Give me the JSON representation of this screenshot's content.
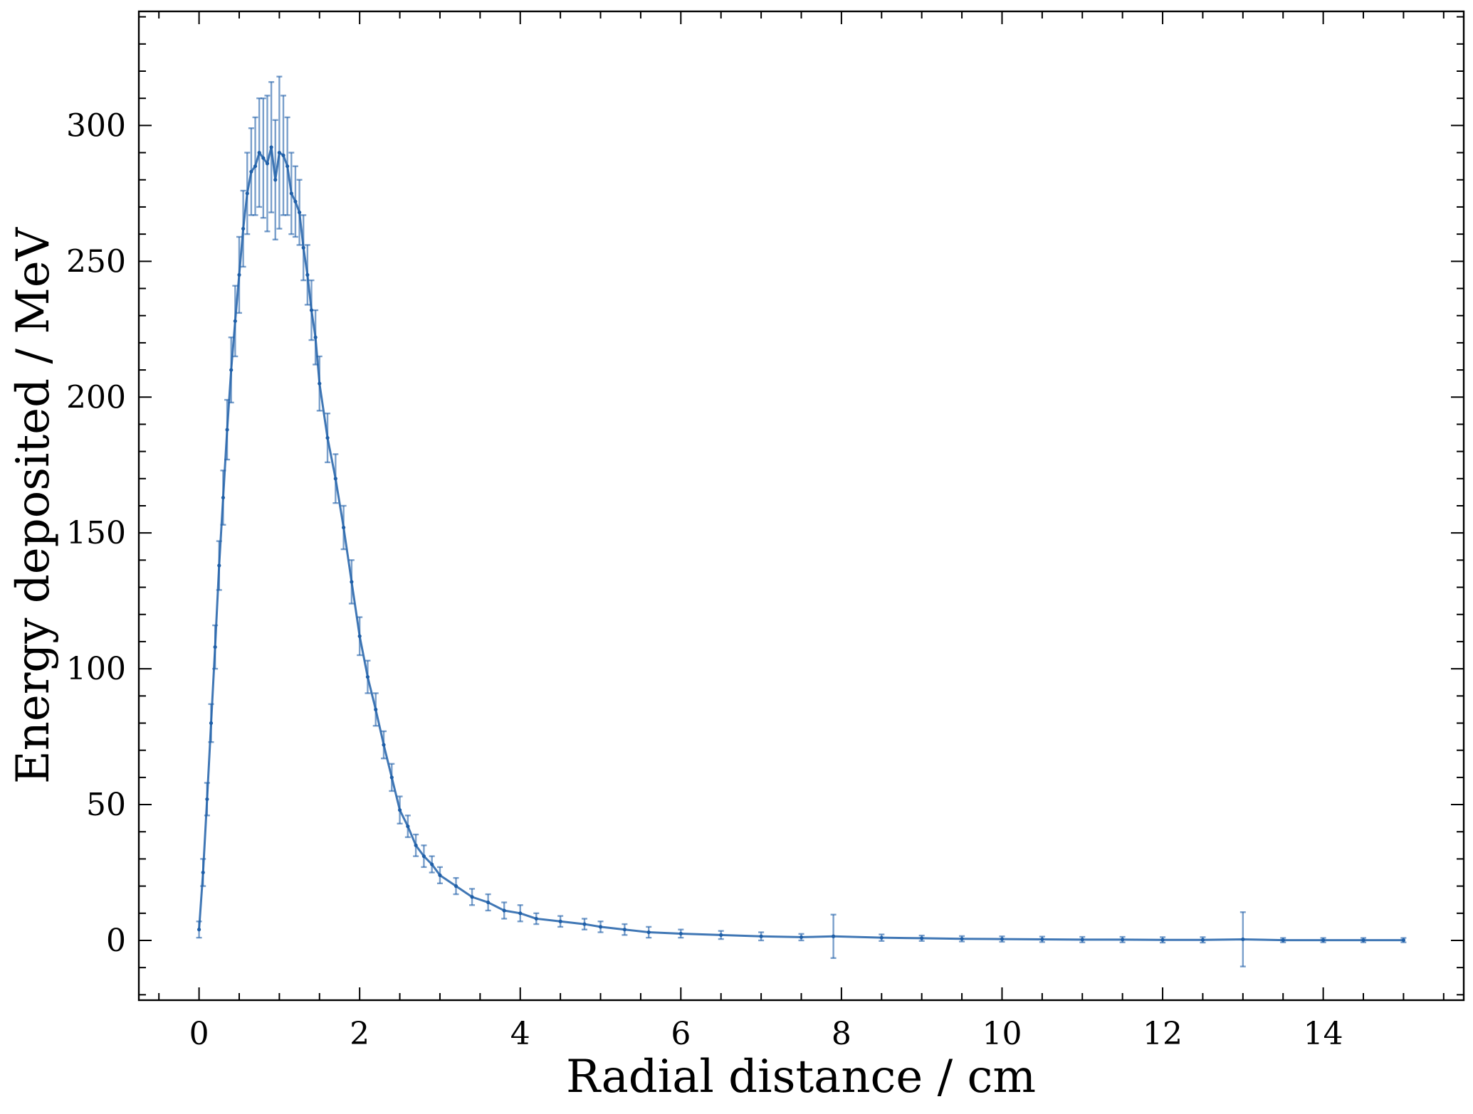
{
  "chart_data": {
    "type": "line",
    "title": "",
    "xlabel": "Radial distance / cm",
    "ylabel": "Energy deposited / MeV",
    "xlim": [
      -0.75,
      15.75
    ],
    "ylim": [
      -22,
      342
    ],
    "xticks": [
      0,
      2,
      4,
      6,
      8,
      10,
      12,
      14
    ],
    "xtick_labels": [
      "0",
      "2",
      "4",
      "6",
      "8",
      "10",
      "12",
      "14"
    ],
    "yticks": [
      0,
      50,
      100,
      150,
      200,
      250,
      300
    ],
    "ytick_labels": [
      "0",
      "50",
      "100",
      "150",
      "200",
      "250",
      "300"
    ],
    "x_minor_step": 0.5,
    "y_minor_step": 10,
    "grid": false,
    "legend": "none",
    "color": "#1f5fa8",
    "series": [
      {
        "error_bars": true,
        "x": [
          0.0,
          0.05,
          0.1,
          0.15,
          0.2,
          0.25,
          0.3,
          0.35,
          0.4,
          0.45,
          0.5,
          0.55,
          0.6,
          0.65,
          0.7,
          0.75,
          0.8,
          0.85,
          0.9,
          0.95,
          1.0,
          1.05,
          1.1,
          1.15,
          1.2,
          1.25,
          1.3,
          1.35,
          1.4,
          1.45,
          1.5,
          1.6,
          1.7,
          1.8,
          1.9,
          2.0,
          2.1,
          2.2,
          2.3,
          2.4,
          2.5,
          2.6,
          2.7,
          2.8,
          2.9,
          3.0,
          3.2,
          3.4,
          3.6,
          3.8,
          4.0,
          4.2,
          4.5,
          4.8,
          5.0,
          5.3,
          5.6,
          6.0,
          6.5,
          7.0,
          7.5,
          7.9,
          8.5,
          9.0,
          9.5,
          10.0,
          10.5,
          11.0,
          11.5,
          12.0,
          12.5,
          13.0,
          13.5,
          14.0,
          14.5,
          15.0
        ],
        "y": [
          4,
          25,
          52,
          80,
          108,
          138,
          163,
          188,
          210,
          228,
          245,
          262,
          275,
          283,
          285,
          290,
          288,
          286,
          292,
          280,
          290,
          289,
          285,
          275,
          272,
          268,
          255,
          245,
          232,
          222,
          205,
          185,
          170,
          152,
          132,
          112,
          97,
          85,
          72,
          60,
          48,
          42,
          35,
          31,
          28,
          24,
          20,
          16,
          14,
          11,
          10,
          8,
          7,
          6,
          5,
          4,
          3,
          2.5,
          2,
          1.5,
          1.2,
          1.5,
          1,
          0.8,
          0.6,
          0.5,
          0.4,
          0.3,
          0.3,
          0.2,
          0.2,
          0.4,
          0.1,
          0.1,
          0.1,
          0.1
        ],
        "yerr": [
          3,
          5,
          6,
          7,
          8,
          9,
          10,
          11,
          12,
          13,
          14,
          14,
          15,
          16,
          18,
          20,
          22,
          25,
          24,
          22,
          28,
          22,
          18,
          15,
          13,
          12,
          12,
          11,
          11,
          10,
          10,
          9,
          9,
          8,
          8,
          7,
          6,
          6,
          5,
          5,
          5,
          4,
          4,
          4,
          3,
          3,
          3,
          3,
          3,
          3,
          3,
          2,
          2,
          2,
          2,
          2,
          2,
          1.5,
          1.5,
          1.5,
          1.2,
          8,
          1.2,
          1,
          1,
          1,
          1,
          1,
          1,
          1,
          1,
          10,
          0.8,
          0.8,
          0.8,
          0.8
        ]
      }
    ]
  }
}
